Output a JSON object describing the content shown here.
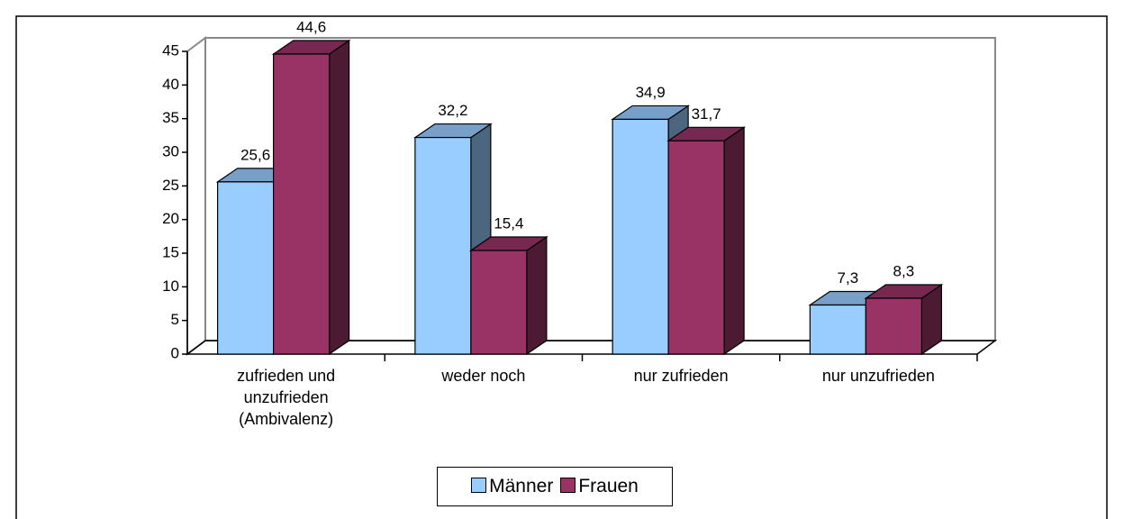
{
  "chart_data": {
    "type": "bar3d",
    "categories": [
      "zufrieden und unzufrieden (Ambivalenz)",
      "weder noch",
      "nur zufrieden",
      "nur unzufrieden"
    ],
    "series": [
      {
        "name": "Männer",
        "color": "#99ccff",
        "values": [
          25.6,
          32.2,
          34.9,
          7.3
        ],
        "value_labels": [
          "25,6",
          "32,2",
          "34,9",
          "7,3"
        ]
      },
      {
        "name": "Frauen",
        "color": "#993366",
        "values": [
          44.6,
          15.4,
          31.7,
          8.3
        ],
        "value_labels": [
          "44,6",
          "15,4",
          "31,7",
          "8,3"
        ]
      }
    ],
    "ylim": [
      0,
      45
    ],
    "yticks": [
      0,
      5,
      10,
      15,
      20,
      25,
      30,
      35,
      40,
      45
    ],
    "legend": "bottom"
  }
}
